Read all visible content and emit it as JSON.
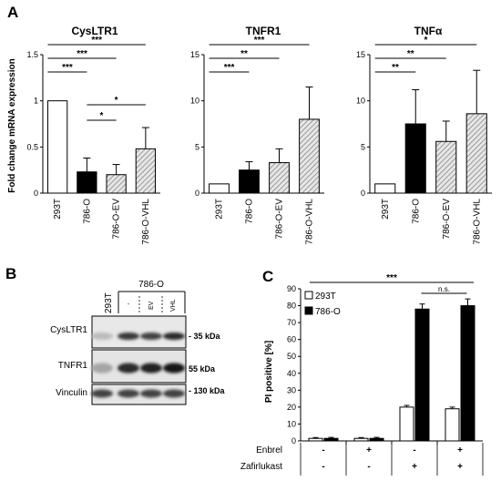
{
  "panel_labels": {
    "a": "A",
    "b": "B",
    "c": "C"
  },
  "chart_data": [
    {
      "type": "bar",
      "title": "CysLTR1",
      "ylabel": "Fold change mRNA expression",
      "categories": [
        "293T",
        "786-O",
        "786-O-EV",
        "786-O-VHL"
      ],
      "values": [
        1.0,
        0.23,
        0.2,
        0.48
      ],
      "errors": [
        0,
        0.15,
        0.11,
        0.23
      ],
      "ylim": [
        0,
        1.5
      ],
      "yticks": [
        "0",
        "0.5",
        "1",
        "1.5"
      ],
      "bar_colors": [
        "#ffffff",
        "#000000",
        "#cfcfcf",
        "#cfcfcf"
      ],
      "hatched": [
        false,
        false,
        true,
        true
      ],
      "significance": [
        {
          "from": 0,
          "to": 3,
          "label": "***"
        },
        {
          "from": 0,
          "to": 2,
          "label": "***"
        },
        {
          "from": 0,
          "to": 1,
          "label": "***"
        },
        {
          "from": 1,
          "to": 3,
          "label": "*"
        },
        {
          "from": 1,
          "to": 2,
          "label": "*"
        }
      ]
    },
    {
      "type": "bar",
      "title": "TNFR1",
      "ylabel": "",
      "categories": [
        "293T",
        "786-O",
        "786-O-EV",
        "786-O-VHL"
      ],
      "values": [
        1.0,
        2.5,
        3.3,
        8.0
      ],
      "errors": [
        0,
        0.9,
        1.5,
        3.5
      ],
      "ylim": [
        0,
        15
      ],
      "yticks": [
        "0",
        "5",
        "10",
        "15"
      ],
      "bar_colors": [
        "#ffffff",
        "#000000",
        "#cfcfcf",
        "#cfcfcf"
      ],
      "hatched": [
        false,
        false,
        true,
        true
      ],
      "significance": [
        {
          "from": 0,
          "to": 3,
          "label": "***"
        },
        {
          "from": 0,
          "to": 2,
          "label": "**"
        },
        {
          "from": 0,
          "to": 1,
          "label": "***"
        }
      ]
    },
    {
      "type": "bar",
      "title": "TNFα",
      "ylabel": "",
      "categories": [
        "293T",
        "786-O",
        "786-O-EV",
        "786-O-VHL"
      ],
      "values": [
        1.0,
        7.5,
        5.6,
        8.6
      ],
      "errors": [
        0,
        3.7,
        2.2,
        4.7
      ],
      "ylim": [
        0,
        15
      ],
      "yticks": [
        "0",
        "5",
        "10",
        "15"
      ],
      "bar_colors": [
        "#ffffff",
        "#000000",
        "#cfcfcf",
        "#cfcfcf"
      ],
      "hatched": [
        false,
        false,
        true,
        true
      ],
      "significance": [
        {
          "from": 0,
          "to": 3,
          "label": "*"
        },
        {
          "from": 0,
          "to": 2,
          "label": "**"
        },
        {
          "from": 0,
          "to": 1,
          "label": "**"
        }
      ]
    },
    {
      "type": "bar",
      "title": "",
      "ylabel": "PI positive [%]",
      "groups": 4,
      "series": [
        {
          "name": "293T",
          "values": [
            1.5,
            1.5,
            20,
            19
          ],
          "errors": [
            0.5,
            0.5,
            1,
            1
          ],
          "color": "#ffffff"
        },
        {
          "name": "786-O",
          "values": [
            1.5,
            1.5,
            78,
            80
          ],
          "errors": [
            0.6,
            0.6,
            3,
            4
          ],
          "color": "#000000"
        }
      ],
      "ylim": [
        0,
        90
      ],
      "yticks": [
        "0",
        "10",
        "20",
        "30",
        "40",
        "50",
        "60",
        "70",
        "80",
        "90"
      ],
      "legend_position": "top-left",
      "significance": [
        {
          "label": "***"
        },
        {
          "label": "n.s."
        }
      ],
      "treatment_rows": [
        {
          "name": "Enbrel",
          "signs": [
            "-",
            "+",
            "-",
            "+"
          ]
        },
        {
          "name": "Zafirlukast",
          "signs": [
            "-",
            "-",
            "+",
            "+"
          ]
        }
      ]
    }
  ],
  "western_blot": {
    "lane_header_293t": "293T",
    "group_label": "786-O",
    "lane_sublabels": [
      "-",
      "EV",
      "VHL"
    ],
    "rows": [
      {
        "label": "CysLTR1",
        "marker": "- 35 kDa",
        "intensity": [
          0.15,
          0.75,
          0.7,
          0.8
        ]
      },
      {
        "label": "TNFR1",
        "marker": "55 kDa",
        "intensity": [
          0.25,
          0.8,
          0.85,
          0.9
        ]
      },
      {
        "label": "Vinculin",
        "marker": "- 130 kDa",
        "intensity": [
          0.7,
          0.7,
          0.7,
          0.7
        ]
      }
    ]
  }
}
